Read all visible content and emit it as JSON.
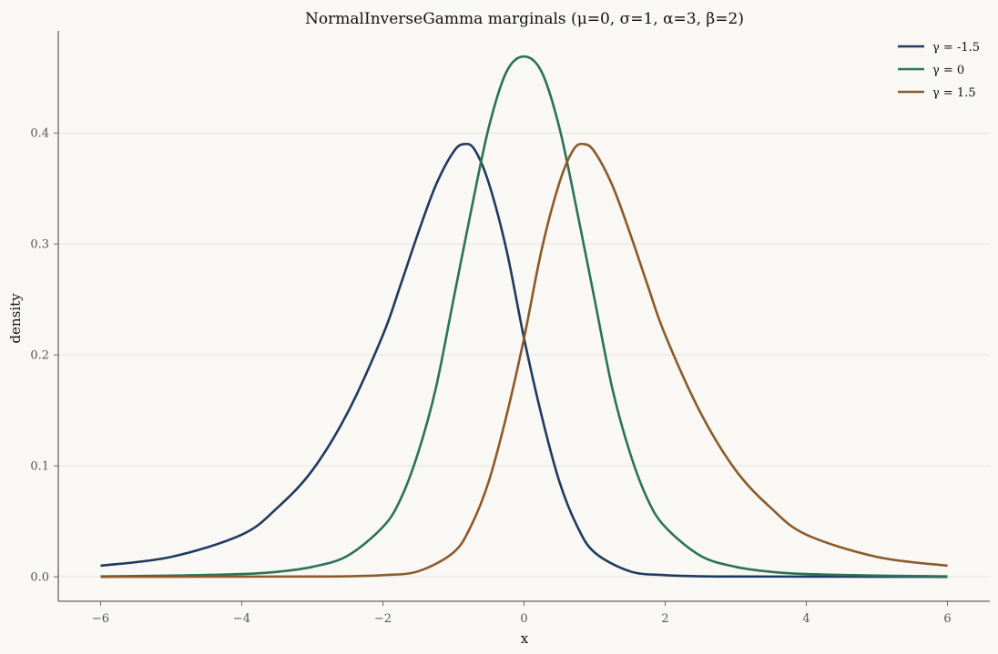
{
  "chart_data": {
    "type": "line",
    "title": "NormalInverseGamma marginals (μ=0, σ=1, α=3, β=2)",
    "xlabel": "x",
    "ylabel": "density",
    "xlim": [
      -6.6,
      6.6
    ],
    "ylim": [
      -0.022,
      0.492
    ],
    "xticks": [
      -6,
      -4,
      -2,
      0,
      2,
      4,
      6
    ],
    "xtick_labels": [
      "−6",
      "−4",
      "−2",
      "0",
      "2",
      "4",
      "6"
    ],
    "yticks": [
      0.0,
      0.1,
      0.2,
      0.3,
      0.4
    ],
    "ytick_labels": [
      "0.0",
      "0.1",
      "0.2",
      "0.3",
      "0.4"
    ],
    "grid": "horizontal",
    "legend_position": "top-right",
    "series": [
      {
        "name": "γ = -1.5",
        "color": "#1f3a5f",
        "x": [
          -6,
          -5,
          -4,
          -3.5,
          -3,
          -2.5,
          -2,
          -1.75,
          -1.5,
          -1.25,
          -1,
          -0.85,
          -0.7,
          -0.5,
          -0.25,
          0,
          0.25,
          0.5,
          0.75,
          1,
          1.5,
          2,
          2.5,
          3,
          4,
          5,
          6
        ],
        "y": [
          0.01,
          0.018,
          0.038,
          0.062,
          0.096,
          0.148,
          0.218,
          0.263,
          0.31,
          0.353,
          0.383,
          0.39,
          0.385,
          0.355,
          0.295,
          0.215,
          0.145,
          0.086,
          0.046,
          0.022,
          0.005,
          0.0015,
          0.0005,
          0.0003,
          0.0002,
          0.0001,
          0.0
        ]
      },
      {
        "name": "γ = 0",
        "color": "#2a7356",
        "x": [
          -6,
          -5,
          -4,
          -3.5,
          -3,
          -2.5,
          -2,
          -1.75,
          -1.5,
          -1.25,
          -1,
          -0.75,
          -0.5,
          -0.25,
          0,
          0.25,
          0.5,
          0.75,
          1,
          1.25,
          1.5,
          1.75,
          2,
          2.5,
          3,
          3.5,
          4,
          5,
          6
        ],
        "y": [
          0.0004,
          0.0011,
          0.0025,
          0.0045,
          0.009,
          0.019,
          0.045,
          0.07,
          0.112,
          0.17,
          0.25,
          0.33,
          0.405,
          0.455,
          0.469,
          0.455,
          0.405,
          0.33,
          0.25,
          0.17,
          0.112,
          0.07,
          0.045,
          0.019,
          0.009,
          0.0045,
          0.0025,
          0.0011,
          0.0004
        ]
      },
      {
        "name": "γ = 1.5",
        "color": "#8b5a2b",
        "x": [
          -6,
          -5,
          -4,
          -3,
          -2.5,
          -2,
          -1.5,
          -1,
          -0.75,
          -0.5,
          -0.25,
          0,
          0.25,
          0.5,
          0.7,
          0.85,
          1,
          1.25,
          1.5,
          1.75,
          2,
          2.5,
          3,
          3.5,
          4,
          5,
          6
        ],
        "y": [
          0.0,
          0.0001,
          0.0002,
          0.0003,
          0.0005,
          0.0015,
          0.005,
          0.022,
          0.046,
          0.086,
          0.145,
          0.215,
          0.295,
          0.355,
          0.385,
          0.39,
          0.383,
          0.353,
          0.31,
          0.263,
          0.218,
          0.148,
          0.096,
          0.062,
          0.038,
          0.018,
          0.01
        ]
      }
    ]
  }
}
